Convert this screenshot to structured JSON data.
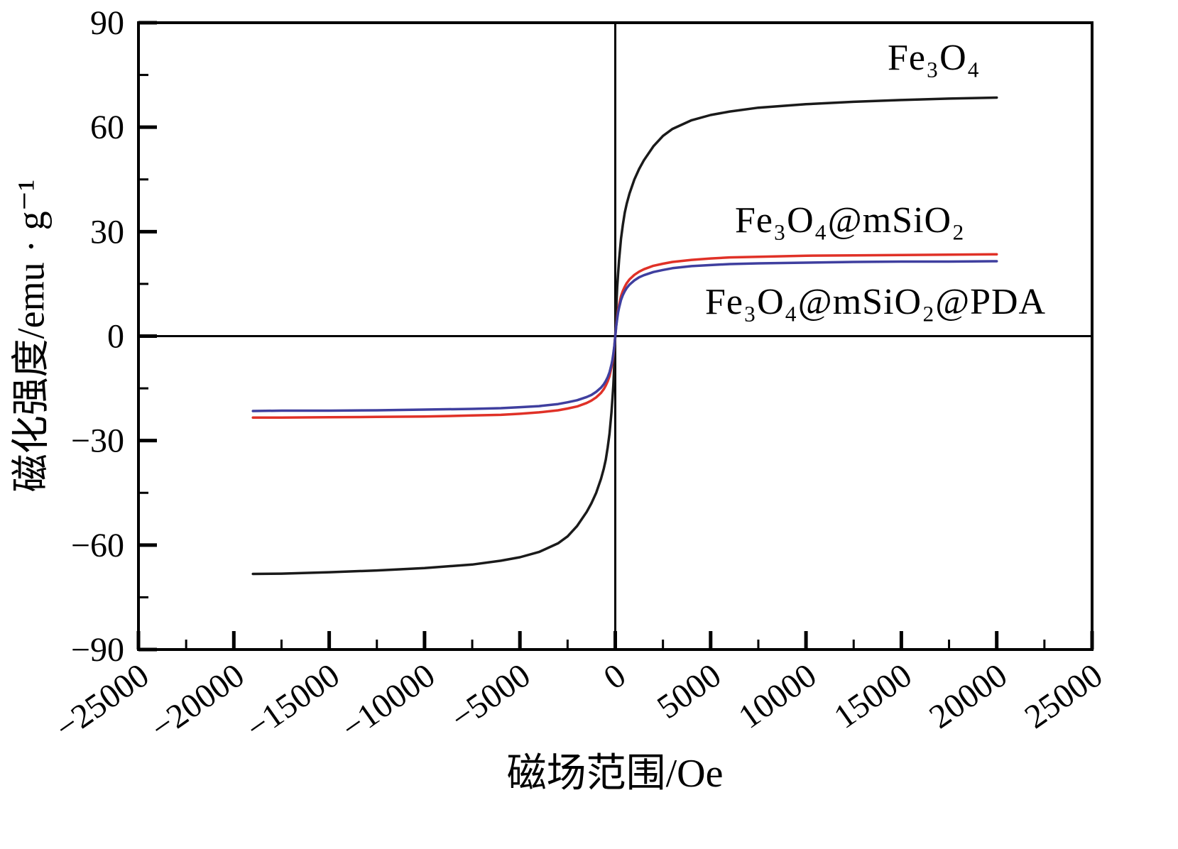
{
  "chart_data": {
    "type": "line",
    "title": "",
    "xlabel": "磁场范围/Oe",
    "ylabel": "磁化强度/emu · g⁻¹",
    "xlim": [
      -25000,
      25000
    ],
    "ylim": [
      -90,
      90
    ],
    "grid": false,
    "legend_position": "annotations-inside-plot",
    "axis_color": "#000000",
    "x_ticks": {
      "major": [
        -25000,
        -20000,
        -15000,
        -10000,
        -5000,
        0,
        5000,
        10000,
        15000,
        20000,
        25000
      ],
      "minor": [
        -22500,
        -17500,
        -12500,
        -7500,
        -2500,
        2500,
        7500,
        12500,
        17500,
        22500
      ],
      "labels": [
        "−25000",
        "−20000",
        "−15000",
        "−10000",
        "−5000",
        "0",
        "5000",
        "10000",
        "15000",
        "20000",
        "25000"
      ]
    },
    "y_ticks": {
      "major": [
        90,
        60,
        30,
        0,
        -30,
        -60,
        -90
      ],
      "minor": [
        75,
        45,
        15,
        -15,
        -45,
        -75
      ],
      "labels": [
        "90",
        "60",
        "30",
        "0",
        "−30",
        "−60",
        "−90"
      ]
    },
    "x": [
      -19000,
      -17500,
      -15000,
      -12500,
      -10000,
      -7500,
      -6000,
      -5000,
      -4000,
      -3000,
      -2500,
      -2000,
      -1500,
      -1250,
      -1000,
      -750,
      -600,
      -500,
      -400,
      -300,
      -200,
      -150,
      -100,
      -50,
      -25,
      0,
      25,
      50,
      100,
      150,
      200,
      300,
      400,
      500,
      600,
      750,
      1000,
      1250,
      1500,
      2000,
      2500,
      3000,
      4000,
      5000,
      6000,
      7500,
      10000,
      12500,
      15000,
      17500,
      20000
    ],
    "series": [
      {
        "key": "fe3o4",
        "name": "Fe₃O₄",
        "color": "#1a1a1a",
        "saturation_emu_per_g": 68.5,
        "values": [
          -68.3,
          -68.2,
          -67.8,
          -67.3,
          -66.6,
          -65.6,
          -64.5,
          -63.5,
          -62.0,
          -59.5,
          -57.5,
          -54.5,
          -50.5,
          -48.0,
          -45.0,
          -41.0,
          -38.0,
          -35.5,
          -32.0,
          -28.0,
          -22.0,
          -18.0,
          -14.0,
          -8.0,
          -4.0,
          0,
          4.0,
          8.0,
          14.0,
          18.0,
          22.0,
          28.0,
          32.0,
          35.5,
          38.0,
          41.0,
          45.0,
          48.0,
          50.5,
          54.5,
          57.5,
          59.5,
          62.0,
          63.5,
          64.5,
          65.6,
          66.6,
          67.3,
          67.8,
          68.2,
          68.5
        ]
      },
      {
        "key": "fe3o4-msio2",
        "name": "Fe₃O₄@mSiO₂",
        "color": "#e03127",
        "saturation_emu_per_g": 23.5,
        "values": [
          -23.4,
          -23.4,
          -23.3,
          -23.2,
          -23.1,
          -22.8,
          -22.6,
          -22.3,
          -21.9,
          -21.3,
          -20.8,
          -20.2,
          -19.2,
          -18.5,
          -17.6,
          -16.3,
          -15.2,
          -14.2,
          -13.0,
          -11.5,
          -9.0,
          -7.5,
          -5.5,
          -3.0,
          -1.5,
          0,
          1.5,
          3.0,
          5.5,
          7.5,
          9.0,
          11.5,
          13.0,
          14.2,
          15.2,
          16.3,
          17.6,
          18.5,
          19.2,
          20.2,
          20.8,
          21.3,
          21.9,
          22.3,
          22.6,
          22.8,
          23.1,
          23.2,
          23.3,
          23.4,
          23.5
        ]
      },
      {
        "key": "fe3o4-msio2-pda",
        "name": "Fe₃O₄@mSiO₂@PDA",
        "color": "#3f3f9f",
        "saturation_emu_per_g": 21.5,
        "values": [
          -21.5,
          -21.4,
          -21.4,
          -21.3,
          -21.1,
          -20.9,
          -20.7,
          -20.4,
          -20.1,
          -19.5,
          -19.0,
          -18.4,
          -17.5,
          -16.9,
          -16.0,
          -14.8,
          -13.8,
          -12.9,
          -11.8,
          -10.4,
          -8.2,
          -6.8,
          -5.0,
          -2.8,
          -1.4,
          0,
          1.4,
          2.8,
          5.0,
          6.8,
          8.2,
          10.4,
          11.8,
          12.9,
          13.8,
          14.8,
          16.0,
          16.9,
          17.5,
          18.4,
          19.0,
          19.5,
          20.1,
          20.4,
          20.7,
          20.9,
          21.1,
          21.3,
          21.4,
          21.4,
          21.5
        ]
      }
    ]
  }
}
